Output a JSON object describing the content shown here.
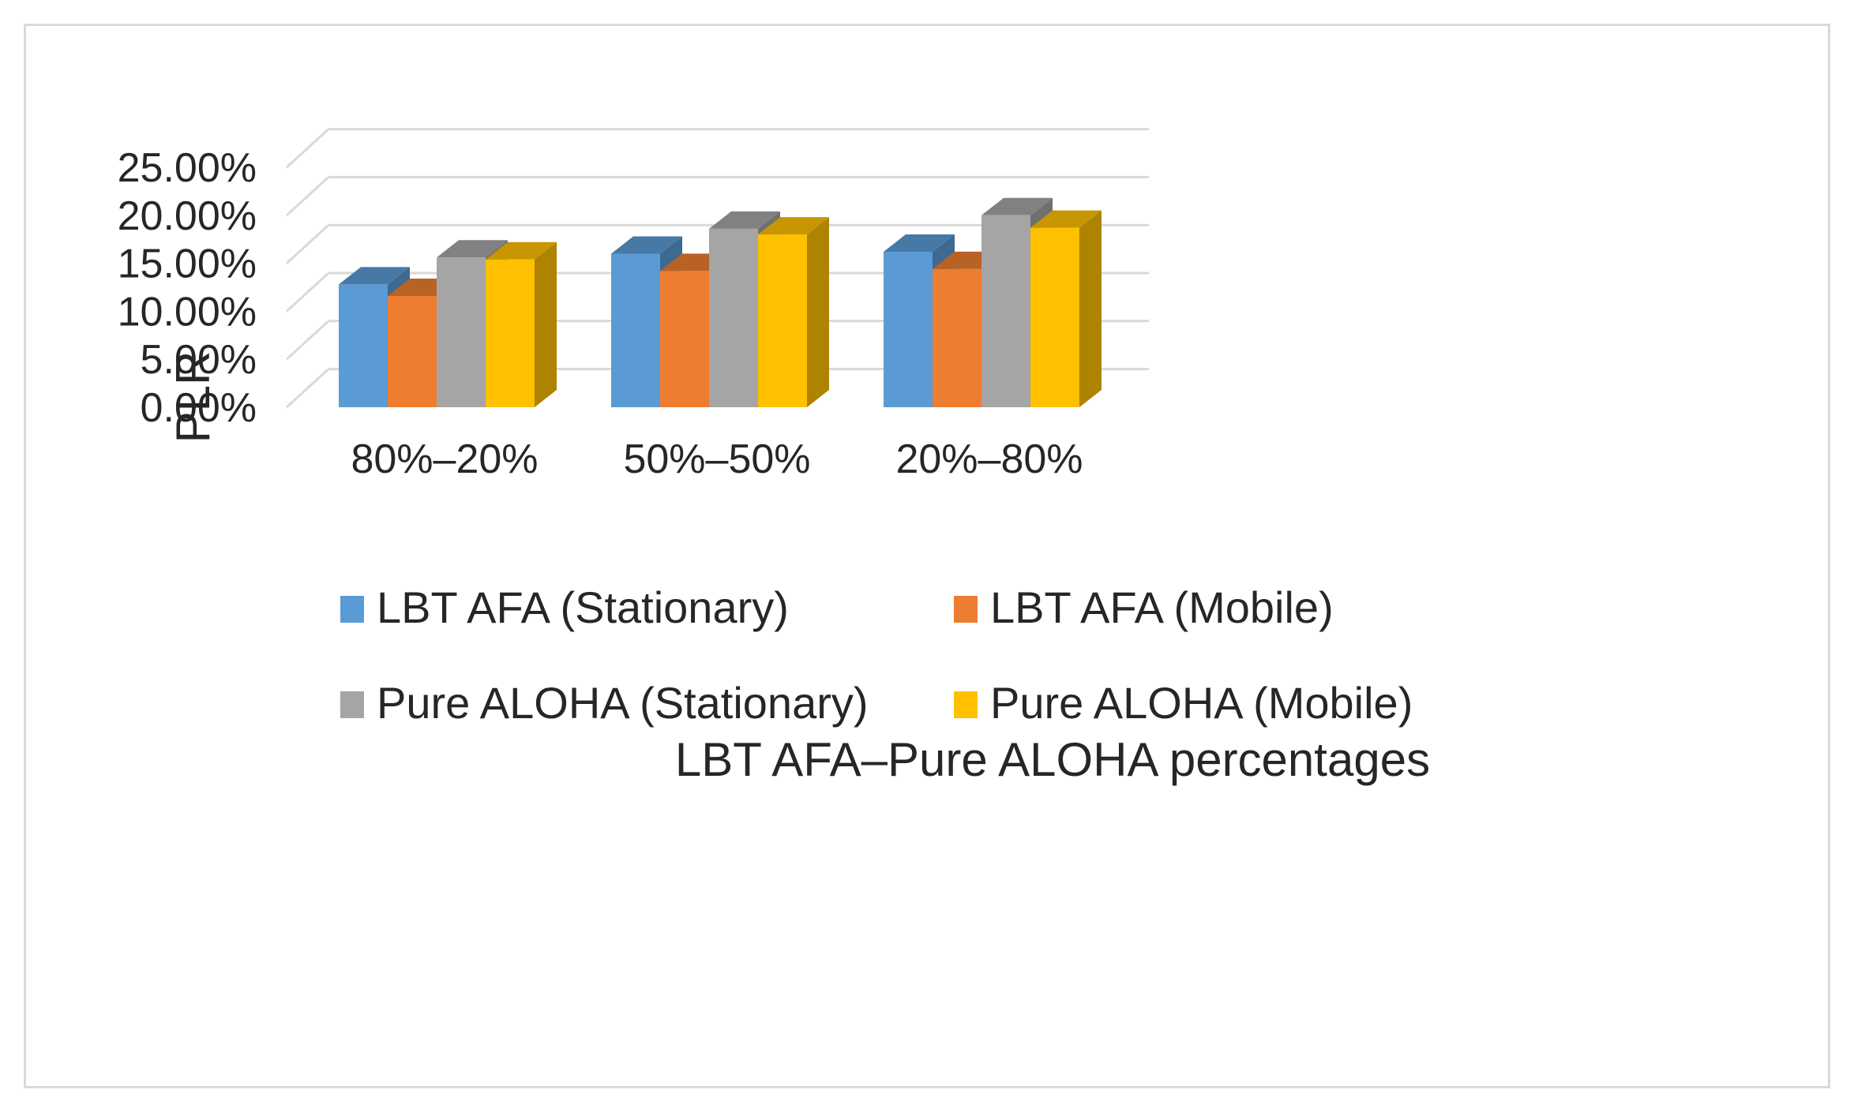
{
  "chart_data": {
    "type": "bar",
    "style": "3d-clustered-column",
    "title": "",
    "xlabel": "LBT AFA–Pure ALOHA percentages",
    "ylabel": "PLR",
    "ylim": [
      0,
      0.25
    ],
    "yticks": [
      0.0,
      0.05,
      0.1,
      0.15,
      0.2,
      0.25
    ],
    "ytick_labels": [
      "0.00%",
      "5.00%",
      "10.00%",
      "15.00%",
      "20.00%",
      "25.00%"
    ],
    "categories": [
      "80%–20%",
      "50%–50%",
      "20%–80%"
    ],
    "series": [
      {
        "name": "LBT AFA (Stationary)",
        "color": "#5b9bd5",
        "values": [
          0.128,
          0.16,
          0.162
        ]
      },
      {
        "name": "LBT AFA (Mobile)",
        "color": "#ed7d31",
        "values": [
          0.116,
          0.142,
          0.144
        ]
      },
      {
        "name": "Pure ALOHA (Stationary)",
        "color": "#a5a5a5",
        "values": [
          0.156,
          0.186,
          0.2
        ]
      },
      {
        "name": "Pure ALOHA (Mobile)",
        "color": "#ffc000",
        "values": [
          0.154,
          0.18,
          0.187
        ]
      }
    ],
    "legend_position": "bottom",
    "grid": true
  }
}
